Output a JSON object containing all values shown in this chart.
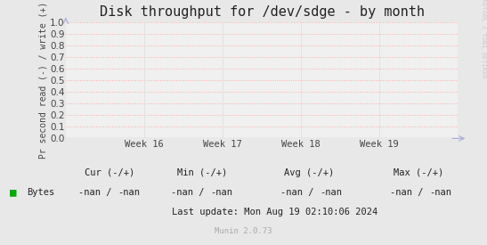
{
  "title": "Disk throughput for /dev/sdge - by month",
  "ylabel": "Pr second read (-) / write (+)",
  "ylim": [
    0.0,
    1.0
  ],
  "yticks": [
    0.0,
    0.1,
    0.2,
    0.3,
    0.4,
    0.5,
    0.6,
    0.7,
    0.8,
    0.9,
    1.0
  ],
  "xtick_labels": [
    "Week 16",
    "Week 17",
    "Week 18",
    "Week 19"
  ],
  "xtick_positions": [
    0.2,
    0.4,
    0.6,
    0.8
  ],
  "bg_color": "#e8e8e8",
  "plot_bg_color": "#f0f0f0",
  "grid_color_h": "#ffaaaa",
  "grid_color_v": "#dddddd",
  "title_fontsize": 11,
  "axis_fontsize": 7,
  "tick_fontsize": 7.5,
  "legend_label": "Bytes",
  "legend_color": "#00aa00",
  "cur_label": "Cur (-/+)",
  "min_label": "Min (-/+)",
  "avg_label": "Avg (-/+)",
  "max_label": "Max (-/+)",
  "cur_val": "-nan /    -nan",
  "min_val": "-nan /    -nan",
  "avg_val": "-nan /    -nan",
  "max_val": "-nan /    -nan",
  "last_update": "Last update: Mon Aug 19 02:10:06 2024",
  "munin_label": "Munin 2.0.73",
  "rrdtool_label": "RRDTOOL / TOBI OETIKER",
  "arrow_color": "#aaaadd",
  "baseline_color": "#777777",
  "dot_color": "#aaaadd"
}
